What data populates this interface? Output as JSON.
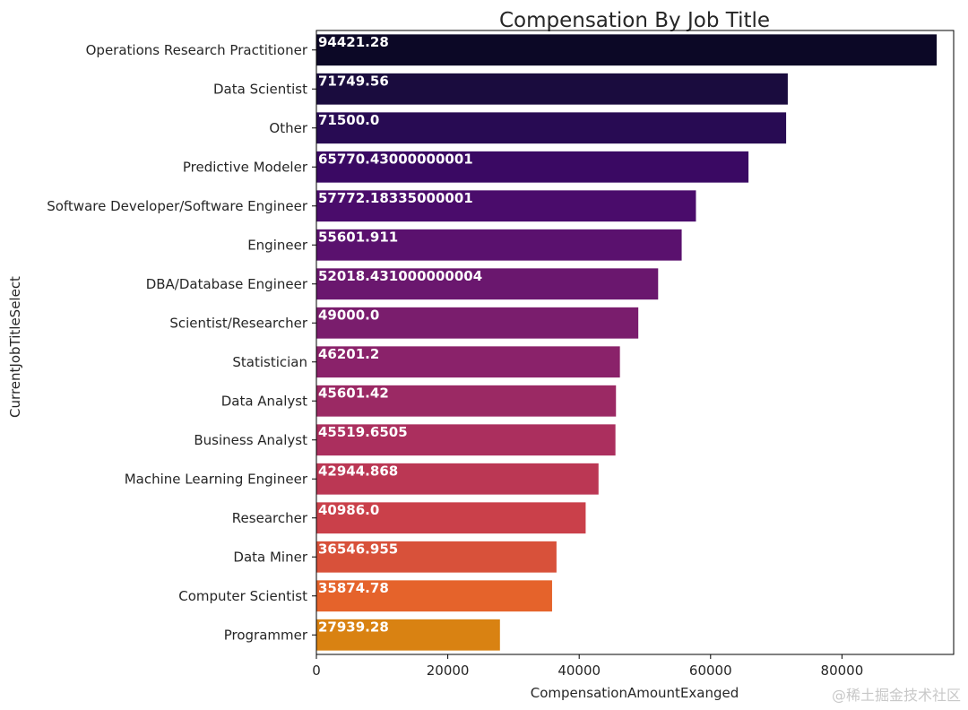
{
  "chart_data": {
    "type": "bar",
    "orientation": "horizontal",
    "title": "Compensation By Job Title",
    "xlabel": "CompensationAmountExanged",
    "ylabel": "CurrentJobTitleSelect",
    "xlim": [
      0,
      97000
    ],
    "xticks": [
      "0",
      "20000",
      "40000",
      "60000",
      "80000"
    ],
    "xtick_values": [
      0,
      20000,
      40000,
      60000,
      80000
    ],
    "grid": false,
    "categories": [
      "Operations Research Practitioner",
      "Data Scientist",
      "Other",
      "Predictive Modeler",
      "Software Developer/Software Engineer",
      "Engineer",
      "DBA/Database Engineer",
      "Scientist/Researcher",
      "Statistician",
      "Data Analyst",
      "Business Analyst",
      "Machine Learning Engineer",
      "Researcher",
      "Data Miner",
      "Computer Scientist",
      "Programmer"
    ],
    "values": [
      94421.28,
      71749.56,
      71500.0,
      65770.43000000001,
      57772.18335000001,
      55601.911,
      52018.431000000004,
      49000.0,
      46201.2,
      45601.42,
      45519.6505,
      42944.868,
      40986.0,
      36546.955,
      35874.78,
      27939.28
    ],
    "data_labels": [
      "94421.28",
      "71749.56",
      "71500.0",
      "65770.43000000001",
      "57772.18335000001",
      "55601.911",
      "52018.431000000004",
      "49000.0",
      "46201.2",
      "45601.42",
      "45519.6505",
      "42944.868",
      "40986.0",
      "36546.955",
      "35874.78",
      "27939.28"
    ],
    "colors": [
      "#0c0826",
      "#1a0c3e",
      "#280b53",
      "#3a0963",
      "#4a0c6b",
      "#5a116e",
      "#6a176e",
      "#7a1d6d",
      "#8a226a",
      "#9b2964",
      "#ab2f5e",
      "#bb3754",
      "#ca404a",
      "#d8513a",
      "#e5632b",
      "#d98212"
    ]
  },
  "watermark": "@稀土掘金技术社区"
}
